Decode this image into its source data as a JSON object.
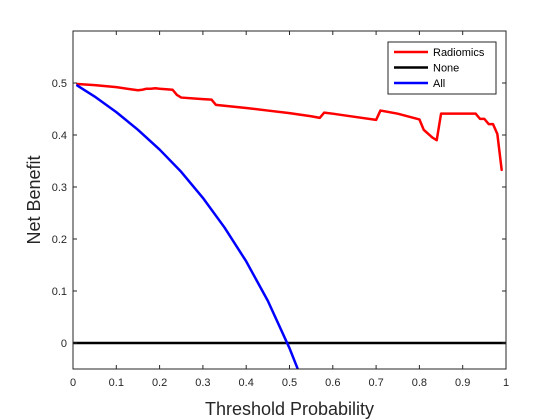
{
  "chart_data": {
    "type": "line",
    "title": "",
    "xlabel": "Threshold Probability",
    "ylabel": "Net Benefit",
    "xlim": [
      0,
      1
    ],
    "ylim": [
      -0.05,
      0.6
    ],
    "xticks": [
      0,
      0.1,
      0.2,
      0.3,
      0.4,
      0.5,
      0.6,
      0.7,
      0.8,
      0.9,
      1
    ],
    "xtick_labels": [
      "0",
      "0.1",
      "0.2",
      "0.3",
      "0.4",
      "0.5",
      "0.6",
      "0.7",
      "0.8",
      "0.9",
      "1"
    ],
    "yticks": [
      0,
      0.1,
      0.2,
      0.3,
      0.4,
      0.5
    ],
    "ytick_labels": [
      "0",
      "0.1",
      "0.2",
      "0.3",
      "0.4",
      "0.5"
    ],
    "grid": false,
    "legend_position": "top-right",
    "series": [
      {
        "name": "Radiomics",
        "color": "#ff0000",
        "x": [
          0.01,
          0.05,
          0.1,
          0.15,
          0.16,
          0.17,
          0.18,
          0.19,
          0.2,
          0.23,
          0.24,
          0.25,
          0.3,
          0.32,
          0.33,
          0.4,
          0.45,
          0.5,
          0.55,
          0.57,
          0.58,
          0.6,
          0.65,
          0.7,
          0.71,
          0.75,
          0.8,
          0.81,
          0.83,
          0.84,
          0.85,
          0.9,
          0.93,
          0.94,
          0.95,
          0.96,
          0.97,
          0.98,
          0.99
        ],
        "y": [
          0.498,
          0.496,
          0.492,
          0.486,
          0.487,
          0.489,
          0.489,
          0.49,
          0.489,
          0.487,
          0.477,
          0.472,
          0.469,
          0.468,
          0.458,
          0.452,
          0.447,
          0.442,
          0.436,
          0.433,
          0.443,
          0.441,
          0.435,
          0.429,
          0.447,
          0.441,
          0.43,
          0.41,
          0.395,
          0.39,
          0.441,
          0.441,
          0.441,
          0.431,
          0.431,
          0.421,
          0.421,
          0.402,
          0.333
        ]
      },
      {
        "name": "None",
        "color": "#000000",
        "x": [
          0,
          1
        ],
        "y": [
          0,
          0
        ]
      },
      {
        "name": "All",
        "color": "#0000ff",
        "x": [
          0.01,
          0.05,
          0.1,
          0.15,
          0.2,
          0.25,
          0.3,
          0.35,
          0.4,
          0.45,
          0.5,
          0.52
        ],
        "y": [
          0.495,
          0.474,
          0.444,
          0.41,
          0.372,
          0.329,
          0.279,
          0.222,
          0.157,
          0.081,
          -0.01,
          -0.052
        ]
      }
    ]
  }
}
